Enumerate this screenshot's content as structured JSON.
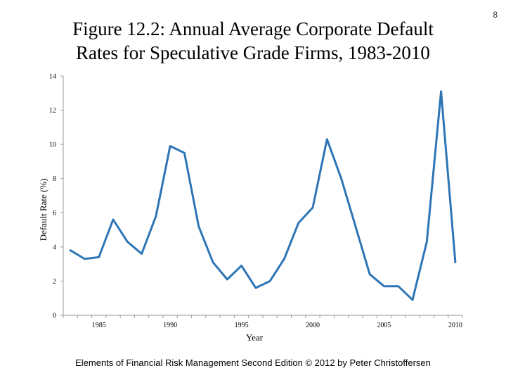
{
  "slide_number": "8",
  "title_lines": [
    "Figure 12.2: Annual Average Corporate Default",
    "Rates for Speculative Grade Firms, 1983-2010"
  ],
  "footer": "Elements of Financial Risk Management Second Edition © 2012  by Peter Christoffersen",
  "colors": {
    "line": "#2e75b6",
    "axis": "#999999"
  },
  "chart_data": {
    "type": "line",
    "title": "Figure 12.2: Annual Average Corporate Default Rates for Speculative Grade Firms, 1983-2010",
    "xlabel": "Year",
    "ylabel": "Default Rate (%)",
    "xlim": [
      1983,
      2010
    ],
    "ylim": [
      0,
      14
    ],
    "x_ticks": [
      "1985",
      "1990",
      "1995",
      "2000",
      "2005",
      "2010"
    ],
    "y_ticks": [
      "0",
      "2",
      "4",
      "6",
      "8",
      "10",
      "12",
      "14"
    ],
    "grid": false,
    "legend": "none",
    "series": [
      {
        "x": [
          1983,
          1984,
          1985,
          1986,
          1987,
          1988,
          1989,
          1990,
          1991,
          1992,
          1993,
          1994,
          1995,
          1996,
          1997,
          1998,
          1999,
          2000,
          2001,
          2002,
          2003,
          2004,
          2005,
          2006,
          2007,
          2008,
          2009,
          2010
        ],
        "y": [
          3.8,
          3.3,
          3.4,
          5.6,
          4.3,
          3.6,
          5.8,
          9.9,
          9.5,
          5.2,
          3.1,
          2.1,
          2.9,
          1.6,
          2.0,
          3.3,
          5.4,
          6.3,
          10.3,
          8.0,
          5.2,
          2.4,
          1.7,
          1.7,
          0.9,
          4.3,
          13.1,
          3.1
        ]
      }
    ]
  }
}
